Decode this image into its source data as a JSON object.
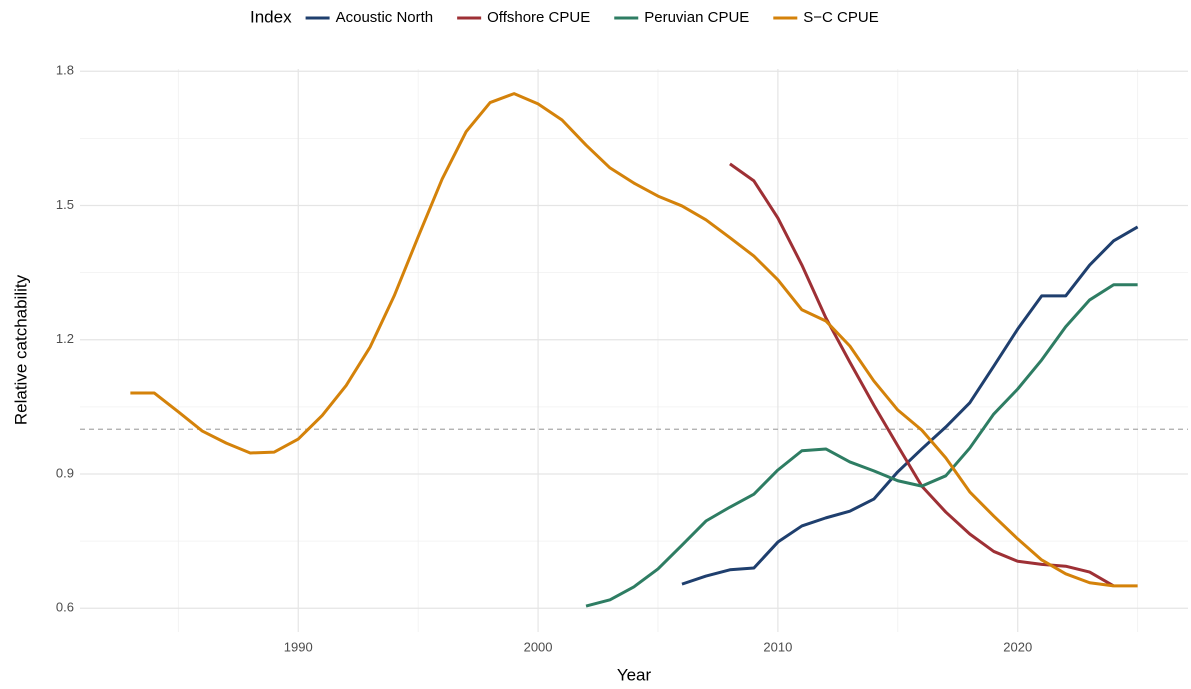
{
  "chart_data": {
    "type": "line",
    "xlabel": "Year",
    "ylabel": "Relative catchability",
    "legend_title": "Index",
    "legend_position": "top",
    "x": [
      1983,
      1984,
      1985,
      1986,
      1987,
      1988,
      1989,
      1990,
      1991,
      1992,
      1993,
      1994,
      1995,
      1996,
      1997,
      1998,
      1999,
      2000,
      2001,
      2002,
      2003,
      2004,
      2005,
      2006,
      2007,
      2008,
      2009,
      2010,
      2011,
      2012,
      2013,
      2014,
      2015,
      2016,
      2017,
      2018,
      2019,
      2020,
      2021,
      2022,
      2023,
      2024,
      2025
    ],
    "series": [
      {
        "name": "Acoustic North",
        "color": "#1f3f6e",
        "values": [
          null,
          null,
          null,
          null,
          null,
          null,
          null,
          null,
          null,
          null,
          null,
          null,
          null,
          null,
          null,
          null,
          null,
          null,
          null,
          null,
          null,
          null,
          null,
          0.654,
          0.672,
          0.686,
          0.69,
          0.748,
          0.784,
          0.802,
          0.817,
          0.844,
          0.905,
          0.956,
          1.005,
          1.059,
          1.141,
          1.224,
          1.298,
          1.298,
          1.367,
          1.421,
          1.452
        ]
      },
      {
        "name": "Offshore CPUE",
        "color": "#9e3035",
        "values": [
          null,
          null,
          null,
          null,
          null,
          null,
          null,
          null,
          null,
          null,
          null,
          null,
          null,
          null,
          null,
          null,
          null,
          null,
          null,
          null,
          null,
          null,
          null,
          null,
          null,
          1.593,
          1.555,
          1.472,
          1.367,
          1.249,
          1.15,
          1.054,
          0.963,
          0.873,
          0.815,
          0.766,
          0.727,
          0.705,
          0.698,
          0.694,
          0.681,
          0.65,
          null
        ]
      },
      {
        "name": "Peruvian CPUE",
        "color": "#2e7d63",
        "values": [
          null,
          null,
          null,
          null,
          null,
          null,
          null,
          null,
          null,
          null,
          null,
          null,
          null,
          null,
          null,
          null,
          null,
          null,
          null,
          0.605,
          0.619,
          0.648,
          0.688,
          0.741,
          0.795,
          0.826,
          0.855,
          0.909,
          0.952,
          0.956,
          0.927,
          0.907,
          0.885,
          0.873,
          0.896,
          0.958,
          1.034,
          1.09,
          1.155,
          1.229,
          1.289,
          1.323,
          1.323
        ]
      },
      {
        "name": "S−C CPUE",
        "color": "#d4820a",
        "values": [
          1.081,
          1.081,
          1.039,
          0.996,
          0.969,
          0.947,
          0.949,
          0.978,
          1.031,
          1.098,
          1.184,
          1.298,
          1.43,
          1.559,
          1.665,
          1.73,
          1.75,
          1.727,
          1.691,
          1.635,
          1.584,
          1.55,
          1.521,
          1.499,
          1.468,
          1.428,
          1.387,
          1.334,
          1.267,
          1.242,
          1.186,
          1.108,
          1.043,
          0.998,
          0.936,
          0.86,
          0.806,
          0.755,
          0.708,
          0.677,
          0.657,
          0.65,
          0.65
        ]
      }
    ],
    "xlim": [
      1980.9,
      2027.1
    ],
    "xticks": [
      1990,
      2000,
      2010,
      2020
    ],
    "minor_xticks": [
      1985,
      1995,
      2005,
      2015,
      2025
    ],
    "ylim": [
      0.547,
      1.805
    ],
    "yticks": [
      0.6,
      0.9,
      1.2,
      1.5,
      1.8
    ],
    "minor_yticks": [
      0.75,
      1.05,
      1.35,
      1.65
    ],
    "hline": 1,
    "grid": true
  }
}
